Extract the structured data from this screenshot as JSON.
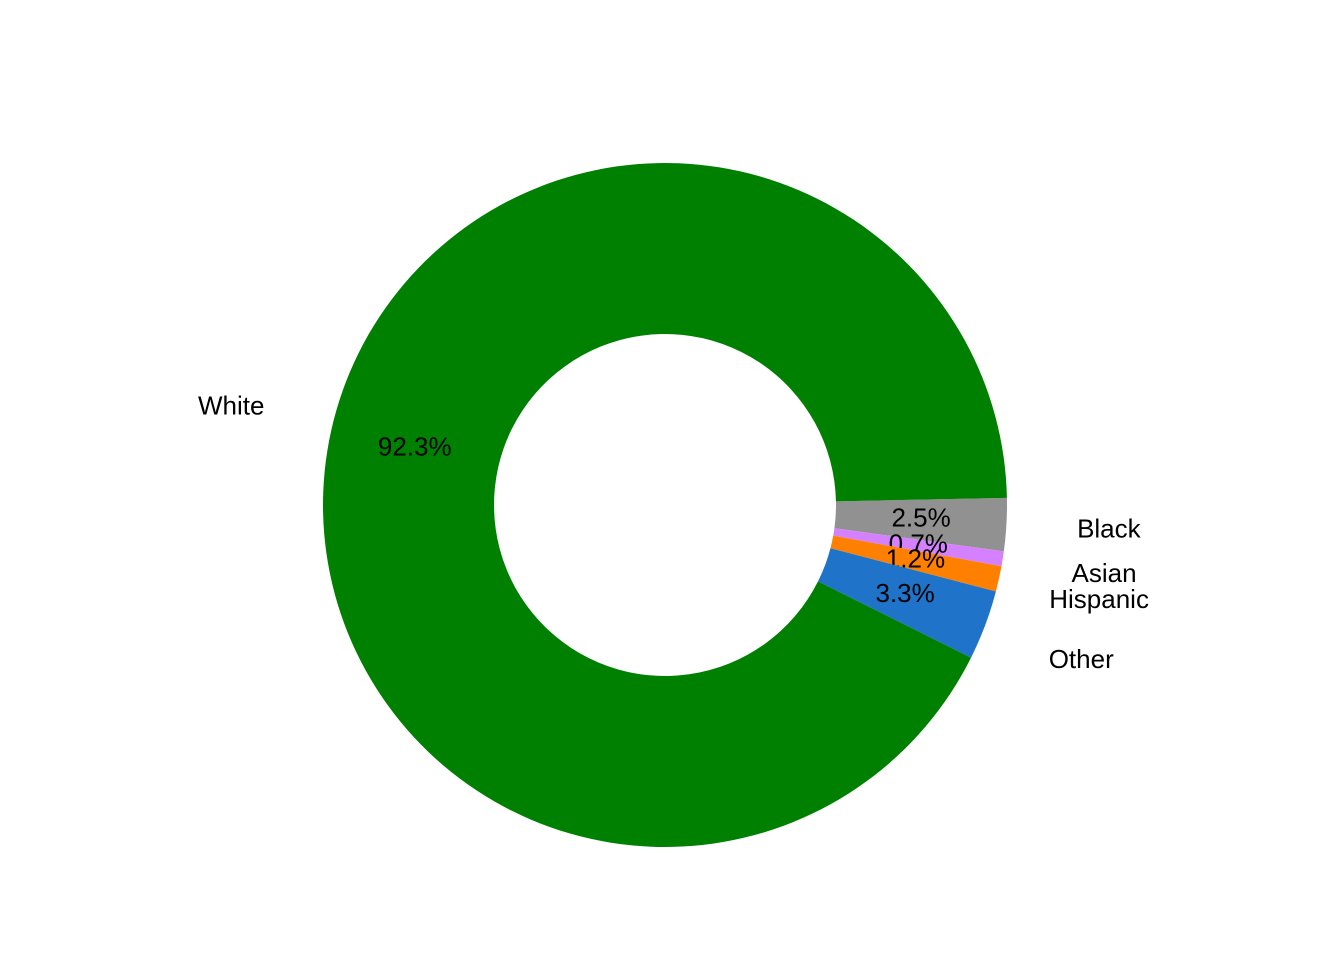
{
  "chart_data": {
    "type": "donut",
    "categories": [
      "Black",
      "Asian",
      "Hispanic",
      "Other",
      "White"
    ],
    "values": [
      2.5,
      0.7,
      1.2,
      3.3,
      92.3
    ],
    "value_labels": [
      "2.5%",
      "0.7%",
      "1.2%",
      "3.3%",
      "92.3%"
    ],
    "colors": [
      "#919191",
      "#d580ff",
      "#ff8000",
      "#1f74c9",
      "#008000"
    ]
  }
}
